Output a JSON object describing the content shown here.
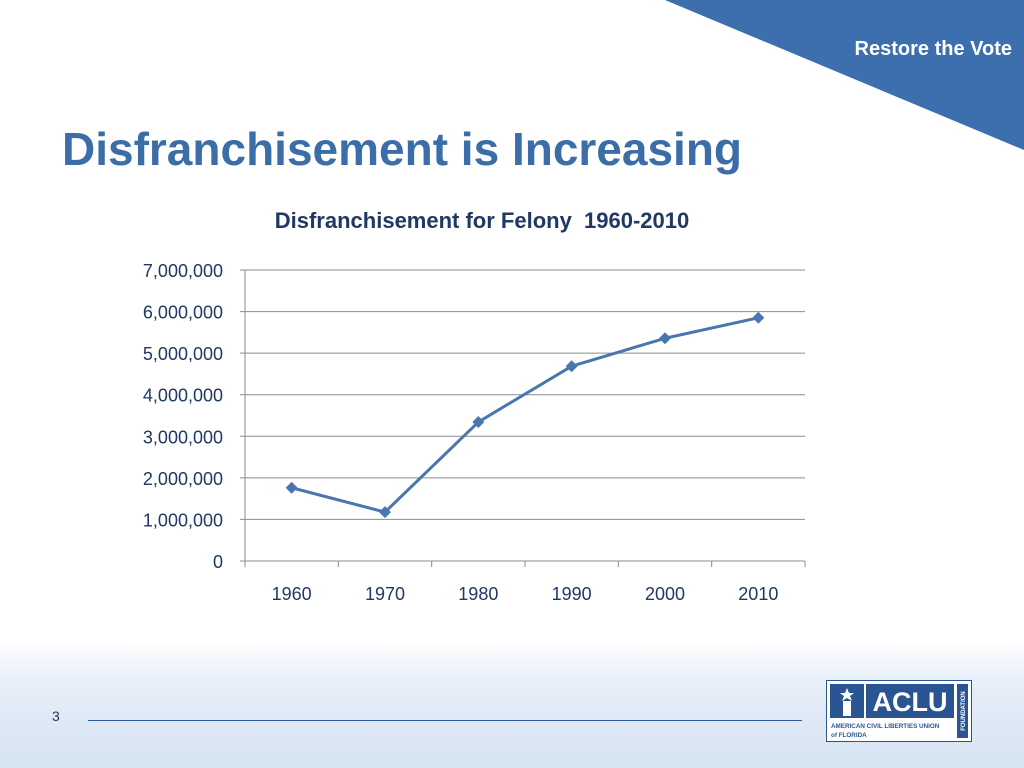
{
  "slide": {
    "corner_label": "Restore the Vote",
    "title": "Disfranchisement is Increasing",
    "page_number": "3",
    "logo": {
      "brand": "ACLU",
      "org_name": "AMERICAN CIVIL LIBERTIES UNION",
      "org_sub": "of FLORIDA",
      "vertical": "FOUNDATION"
    }
  },
  "colors": {
    "accent": "#3b6ea8",
    "series": "#4a76b0",
    "corner": "#3d6fae"
  },
  "chart_data": {
    "type": "line",
    "title": "Disfranchisement for Felony  1960-2010",
    "xlabel": "",
    "ylabel": "",
    "categories": [
      "1960",
      "1970",
      "1980",
      "1990",
      "2000",
      "2010"
    ],
    "series": [
      {
        "values": [
          1762000,
          1176000,
          3343000,
          4686000,
          5358000,
          5850000
        ]
      }
    ],
    "ylim": [
      0,
      7000000
    ],
    "yticks": [
      "0",
      "1,000,000",
      "2,000,000",
      "3,000,000",
      "4,000,000",
      "5,000,000",
      "6,000,000",
      "7,000,000"
    ],
    "grid": true,
    "legend": "none",
    "marker": "diamond"
  }
}
